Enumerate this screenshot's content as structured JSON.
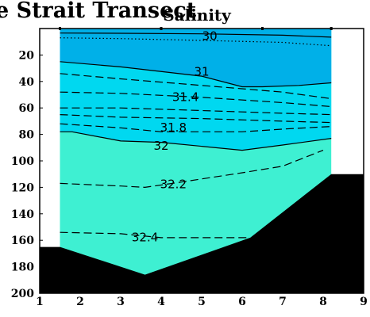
{
  "page": {
    "banner_text": "e Strait Transect"
  },
  "chart_data": {
    "type": "contour",
    "title": "Salinity",
    "x_ticks": [
      "1",
      "2",
      "3",
      "4",
      "5",
      "6",
      "7",
      "8",
      "9"
    ],
    "y_ticks": [
      "20",
      "40",
      "60",
      "80",
      "100",
      "120",
      "140",
      "160",
      "180",
      "200"
    ],
    "xlim": [
      1,
      9
    ],
    "ylim": [
      200,
      0
    ],
    "y_reversed": true,
    "grid": false,
    "station_x": [
      1.5,
      4.0,
      6.5,
      8.2
    ],
    "colors": {
      "upper_water": "#00d8f0",
      "surface_water": "#00b0e8",
      "deep_water": "#3ef0d2",
      "bottom": "#000000",
      "contour": "#000000"
    },
    "bathymetry": {
      "x": [
        1,
        1.5,
        3.6,
        6.2,
        8.2,
        9
      ],
      "depth": [
        165,
        165,
        186,
        158,
        110,
        110
      ]
    },
    "contours": [
      {
        "label": "30",
        "style": "dotted",
        "x": [
          1.5,
          3.0,
          5.0,
          7.0,
          8.2
        ],
        "depth": [
          7,
          7.6,
          9,
          10.5,
          13
        ]
      },
      {
        "label": "",
        "style": "solid",
        "x": [
          1.5,
          3.0,
          5.0,
          7.0,
          8.2
        ],
        "depth": [
          3.4,
          3.6,
          4,
          5,
          6.5
        ]
      },
      {
        "label": "31",
        "style": "solid",
        "x": [
          1.5,
          3.0,
          5.0,
          6.0,
          6.5,
          7.4,
          8.2
        ],
        "depth": [
          25,
          29,
          36,
          44,
          44,
          43,
          41
        ]
      },
      {
        "label": "",
        "style": "dashed",
        "x": [
          1.5,
          3.0,
          5.0,
          7.0,
          8.2
        ],
        "depth": [
          34,
          38,
          43,
          48,
          53
        ]
      },
      {
        "label": "31.4",
        "style": "dashed",
        "x": [
          1.5,
          3.0,
          5.0,
          7.0,
          8.2
        ],
        "depth": [
          48,
          49,
          52,
          56,
          59
        ]
      },
      {
        "label": "",
        "style": "dashed",
        "x": [
          1.5,
          3.0,
          5.0,
          7.0,
          8.2
        ],
        "depth": [
          60,
          60,
          62,
          64,
          65
        ]
      },
      {
        "label": "",
        "style": "dashed",
        "x": [
          1.5,
          3.0,
          5.0,
          7.0,
          8.2
        ],
        "depth": [
          65,
          67,
          68,
          70,
          71
        ]
      },
      {
        "label": "31.8",
        "style": "dashed",
        "x": [
          1.5,
          3.0,
          4.0,
          6.0,
          7.0,
          8.2
        ],
        "depth": [
          72,
          75,
          78,
          78,
          76,
          74
        ]
      },
      {
        "label": "32",
        "style": "solid",
        "x": [
          1.5,
          1.8,
          3.0,
          4.0,
          6.0,
          7.0,
          8.2
        ],
        "depth": [
          78,
          78,
          85,
          86,
          92,
          88,
          83
        ]
      },
      {
        "label": "32.2",
        "style": "dashed",
        "x": [
          1.5,
          3.0,
          3.6,
          4.5,
          6.0,
          7.0,
          8.0
        ],
        "depth": [
          117,
          119,
          120,
          116,
          109,
          104,
          92
        ]
      },
      {
        "label": "32.4",
        "style": "dashed",
        "x": [
          1.5,
          3.0,
          4.0,
          5.0,
          6.2
        ],
        "depth": [
          154,
          155,
          158,
          158,
          158
        ]
      }
    ],
    "labels": [
      {
        "text": "30",
        "x": 5.2,
        "depth": 6
      },
      {
        "text": "31",
        "x": 5.0,
        "depth": 33
      },
      {
        "text": "31.4",
        "x": 4.6,
        "depth": 52
      },
      {
        "text": "31.8",
        "x": 4.3,
        "depth": 75
      },
      {
        "text": "32",
        "x": 4.0,
        "depth": 89
      },
      {
        "text": "32.2",
        "x": 4.3,
        "depth": 118
      },
      {
        "text": "32.4",
        "x": 3.6,
        "depth": 158
      }
    ]
  }
}
